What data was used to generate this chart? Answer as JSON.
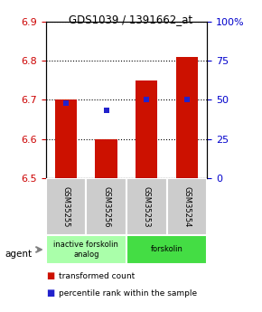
{
  "title": "GDS1039 / 1391662_at",
  "samples": [
    "GSM35255",
    "GSM35256",
    "GSM35253",
    "GSM35254"
  ],
  "bar_values": [
    6.7,
    6.6,
    6.75,
    6.81
  ],
  "bar_base": 6.5,
  "percentile_values": [
    48,
    43,
    50,
    50
  ],
  "ylim": [
    6.5,
    6.9
  ],
  "yticks": [
    6.5,
    6.6,
    6.7,
    6.8,
    6.9
  ],
  "right_yticks": [
    0,
    25,
    50,
    75,
    100
  ],
  "right_ytick_labels": [
    "0",
    "25",
    "50",
    "75",
    "100%"
  ],
  "bar_color": "#cc1100",
  "percentile_color": "#2222cc",
  "groups": [
    {
      "label": "inactive forskolin\nanalog",
      "samples": [
        0,
        1
      ],
      "color": "#aaffaa"
    },
    {
      "label": "forskolin",
      "samples": [
        2,
        3
      ],
      "color": "#44dd44"
    }
  ],
  "agent_label": "agent",
  "legend_items": [
    {
      "color": "#cc1100",
      "label": "transformed count"
    },
    {
      "color": "#2222cc",
      "label": "percentile rank within the sample"
    }
  ],
  "bar_width": 0.55,
  "tick_label_color_left": "#cc0000",
  "tick_label_color_right": "#0000cc"
}
